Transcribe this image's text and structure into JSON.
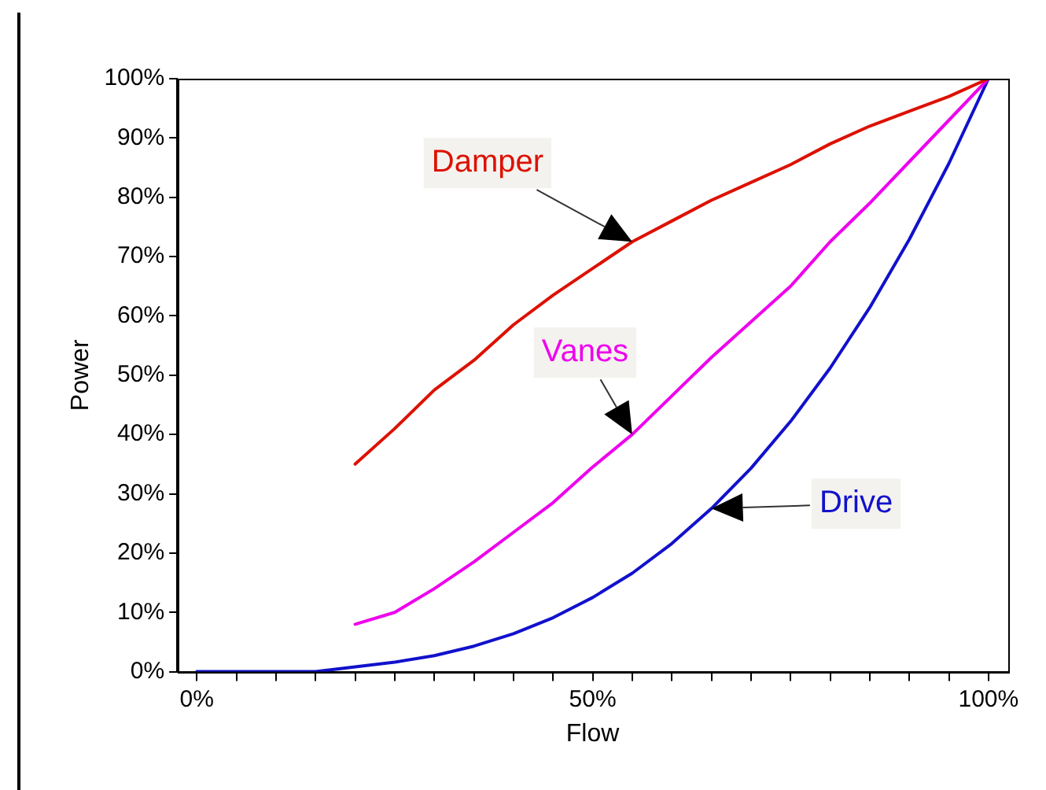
{
  "chart_data": {
    "type": "line",
    "xlabel": "Flow",
    "ylabel": "Power",
    "x": [
      0,
      5,
      10,
      15,
      20,
      25,
      30,
      35,
      40,
      45,
      50,
      55,
      60,
      65,
      70,
      75,
      80,
      85,
      90,
      95,
      100
    ],
    "series": [
      {
        "name": "Damper",
        "color": "#dd1100",
        "values": [
          null,
          null,
          null,
          null,
          35,
          41,
          47.5,
          52.5,
          58.5,
          63.5,
          68,
          72.5,
          76,
          79.5,
          82.5,
          85.5,
          89,
          92,
          94.5,
          97,
          100
        ]
      },
      {
        "name": "Vanes",
        "color": "#ee00ee",
        "values": [
          null,
          null,
          null,
          null,
          8,
          10,
          14,
          18.5,
          23.5,
          28.5,
          34.5,
          40,
          46.5,
          53,
          59,
          65,
          72.5,
          79,
          86,
          93,
          100
        ]
      },
      {
        "name": "Drive",
        "color": "#1111cc",
        "values": [
          0,
          0,
          0,
          0,
          0.8,
          1.6,
          2.7,
          4.3,
          6.4,
          9.1,
          12.5,
          16.6,
          21.6,
          27.5,
          34.3,
          42.2,
          51.2,
          61.4,
          72.9,
          85.7,
          100
        ]
      }
    ],
    "xlim": [
      -2.5,
      102.5
    ],
    "xticks": [
      {
        "value": 0,
        "label": "0%"
      },
      {
        "value": 5,
        "label": null
      },
      {
        "value": 10,
        "label": null
      },
      {
        "value": 15,
        "label": null
      },
      {
        "value": 20,
        "label": null
      },
      {
        "value": 25,
        "label": null
      },
      {
        "value": 30,
        "label": null
      },
      {
        "value": 35,
        "label": null
      },
      {
        "value": 40,
        "label": null
      },
      {
        "value": 45,
        "label": null
      },
      {
        "value": 50,
        "label": "50%"
      },
      {
        "value": 55,
        "label": null
      },
      {
        "value": 60,
        "label": null
      },
      {
        "value": 65,
        "label": null
      },
      {
        "value": 70,
        "label": null
      },
      {
        "value": 75,
        "label": null
      },
      {
        "value": 80,
        "label": null
      },
      {
        "value": 85,
        "label": null
      },
      {
        "value": 90,
        "label": null
      },
      {
        "value": 95,
        "label": null
      },
      {
        "value": 100,
        "label": "100%"
      }
    ],
    "ylim": [
      0,
      100
    ],
    "yticks": [
      {
        "value": 0,
        "label": "0%"
      },
      {
        "value": 10,
        "label": "10%"
      },
      {
        "value": 20,
        "label": "20%"
      },
      {
        "value": 30,
        "label": "30%"
      },
      {
        "value": 40,
        "label": "40%"
      },
      {
        "value": 50,
        "label": "50%"
      },
      {
        "value": 60,
        "label": "60%"
      },
      {
        "value": 70,
        "label": "70%"
      },
      {
        "value": 80,
        "label": "80%"
      },
      {
        "value": 90,
        "label": "90%"
      },
      {
        "value": 100,
        "label": "100%"
      }
    ],
    "grid": false,
    "legend": false,
    "marker": "none",
    "line_style": "solid"
  }
}
